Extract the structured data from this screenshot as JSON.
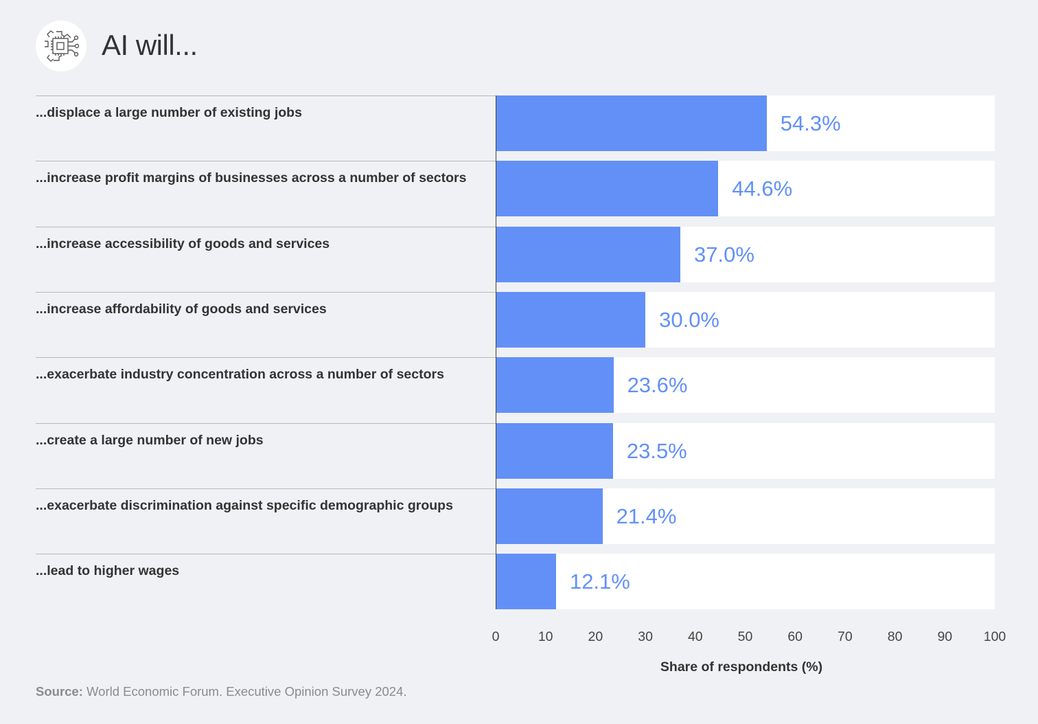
{
  "header": {
    "title": "AI will...",
    "icon": "ai-chip-gear-icon"
  },
  "chart_data": {
    "type": "bar",
    "orientation": "horizontal",
    "title": "AI will...",
    "categories": [
      "...displace a large number of existing jobs",
      "...increase profit margins of businesses across a number of sectors",
      "...increase accessibility of goods and services",
      "...increase affordability of goods and services",
      "...exacerbate industry concentration across a number of sectors",
      "...create a large number of new jobs",
      "...exacerbate discrimination against specific demographic groups",
      "...lead to higher wages"
    ],
    "values": [
      54.3,
      44.6,
      37.0,
      30.0,
      23.6,
      23.5,
      21.4,
      12.1
    ],
    "value_labels": [
      "54.3%",
      "44.6%",
      "37.0%",
      "30.0%",
      "23.6%",
      "23.5%",
      "21.4%",
      "12.1%"
    ],
    "xlabel": "Share of respondents (%)",
    "xlim": [
      0,
      100
    ],
    "xticks": [
      "0",
      "10",
      "20",
      "30",
      "40",
      "50",
      "60",
      "70",
      "80",
      "90",
      "100"
    ],
    "grid": false,
    "bar_color": "#6290f7",
    "track_color": "#ffffff"
  },
  "footer": {
    "source_label": "Source:",
    "source_text": " World Economic Forum. Executive Opinion Survey 2024."
  }
}
